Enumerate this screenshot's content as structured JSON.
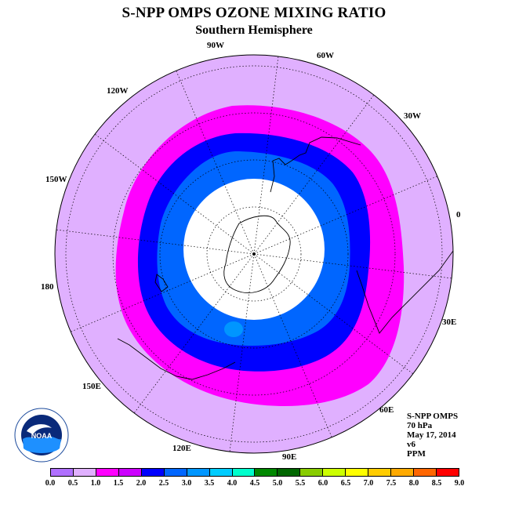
{
  "title": "S-NPP OMPS OZONE MIXING RATIO",
  "subtitle": "Southern Hemisphere",
  "map": {
    "projection": "south-polar-stereographic",
    "longitude_labels": [
      "90W",
      "60W",
      "30W",
      "0",
      "30E",
      "60E",
      "90E",
      "120E",
      "150E",
      "180",
      "150W",
      "120W"
    ],
    "contour_levels_ppm": [
      1.0,
      1.5,
      2.0,
      2.5,
      3.0
    ],
    "pole_region": "white",
    "background_color": "#e0b0ff"
  },
  "info": {
    "instrument": "S-NPP OMPS",
    "level": "70 hPa",
    "date": "May 17, 2014",
    "version": "v6",
    "units": "PPM"
  },
  "logo": {
    "text": "NOAA",
    "ring_text": "NATIONAL OCEANIC AND ATMOSPHERIC ADMINISTRATION"
  },
  "colorbar": {
    "colors": [
      "#b070ff",
      "#e0b0ff",
      "#ff00ff",
      "#cc00ff",
      "#0000ff",
      "#0066ff",
      "#0096ff",
      "#00ccff",
      "#00ffcc",
      "#008800",
      "#006600",
      "#88cc00",
      "#ccff00",
      "#ffff00",
      "#ffcc00",
      "#ffaa00",
      "#ff6600",
      "#ff0000",
      "#cc0000",
      "#8b5a2b"
    ],
    "tick_labels": [
      "0.0",
      "0.5",
      "1.0",
      "1.5",
      "2.0",
      "2.5",
      "3.0",
      "3.5",
      "4.0",
      "4.5",
      "5.0",
      "5.5",
      "6.0",
      "6.5",
      "7.0",
      "7.5",
      "8.0",
      "8.5",
      "9.0"
    ]
  }
}
